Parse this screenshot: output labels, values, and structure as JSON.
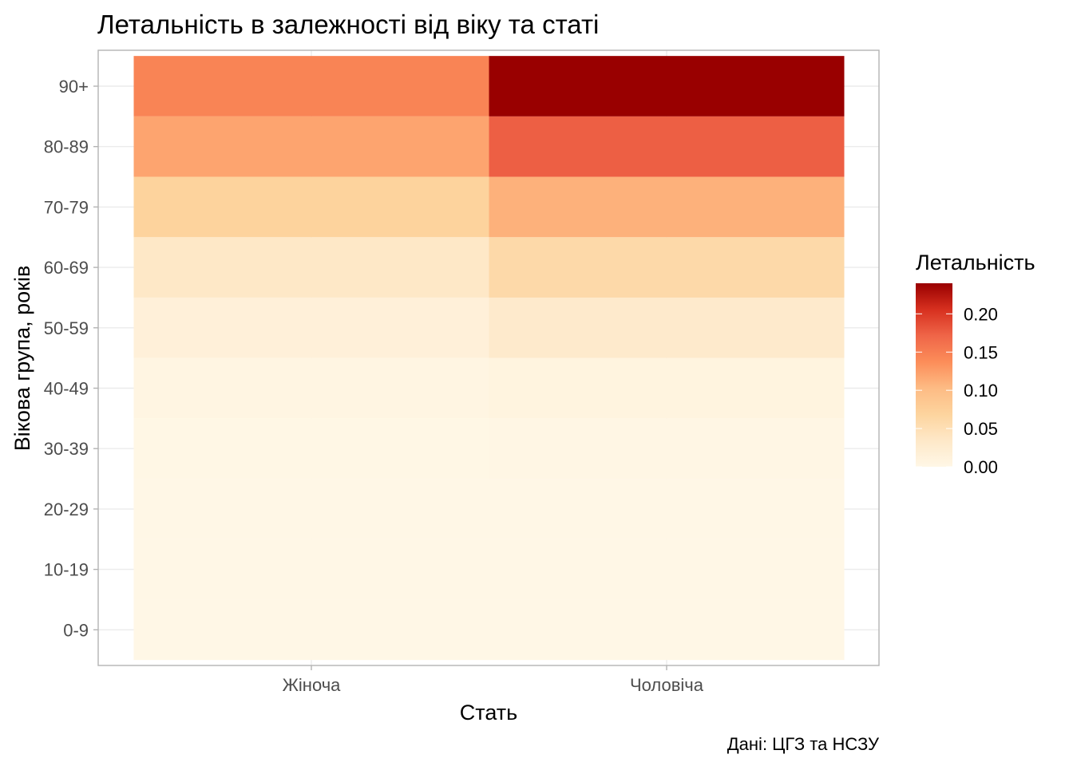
{
  "chart_data": {
    "type": "heatmap",
    "title": "Летальність в залежності від віку та статі",
    "xlabel": "Стать",
    "ylabel": "Вікова група, років",
    "caption": "Дані: ЦГЗ та НСЗУ",
    "x": [
      "Жіноча",
      "Чоловіча"
    ],
    "y": [
      "0-9",
      "10-19",
      "20-29",
      "30-39",
      "40-49",
      "50-59",
      "60-69",
      "70-79",
      "80-89",
      "90+"
    ],
    "values": [
      [
        0.0,
        0.0
      ],
      [
        0.0,
        0.0
      ],
      [
        0.0,
        0.0
      ],
      [
        0.001,
        0.002
      ],
      [
        0.005,
        0.008
      ],
      [
        0.015,
        0.03
      ],
      [
        0.035,
        0.06
      ],
      [
        0.07,
        0.11
      ],
      [
        0.12,
        0.175
      ],
      [
        0.145,
        0.24
      ]
    ],
    "legend": {
      "title": "Летальність",
      "ticks": [
        "0.00",
        "0.05",
        "0.10",
        "0.15",
        "0.20"
      ],
      "tick_values": [
        0,
        0.05,
        0.1,
        0.15,
        0.2
      ],
      "range": [
        0,
        0.24
      ],
      "placement": "right"
    },
    "colorscale": [
      "#FFF7E6",
      "#FEE8C8",
      "#FDD49E",
      "#FDBB84",
      "#FC8D59",
      "#EF6548",
      "#D7301F",
      "#990000"
    ],
    "grid": true
  }
}
